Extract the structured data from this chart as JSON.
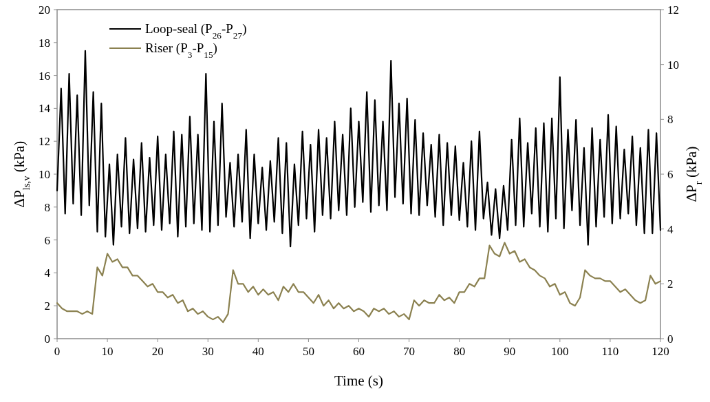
{
  "chart_data": {
    "type": "line",
    "xlabel": "Time (s)",
    "ylabel": "ΔP$_{ls,v}$ (kPa)",
    "y2label": "ΔP$_{r}$ (kPa)",
    "xlim": [
      0,
      120
    ],
    "xticks": [
      0,
      10,
      20,
      30,
      40,
      50,
      60,
      70,
      80,
      90,
      100,
      110,
      120
    ],
    "ylim": [
      0,
      20
    ],
    "yticks": [
      0,
      2,
      4,
      6,
      8,
      10,
      12,
      14,
      16,
      18,
      20
    ],
    "y2lim": [
      0,
      12
    ],
    "y2ticks": [
      0,
      2,
      4,
      6,
      8,
      10,
      12
    ],
    "grid": false,
    "legend": "top left",
    "marker": "none",
    "line_style": "solid",
    "series": [
      {
        "name": "Loop-seal (P$_{26}$-P$_{27}$)",
        "color": "#000000",
        "x": [
          0,
          0.8,
          1.6,
          2.4,
          3.2,
          4,
          4.8,
          5.6,
          6.4,
          7.2,
          8,
          8.8,
          9.6,
          10.4,
          11.2,
          12,
          12.8,
          13.6,
          14.4,
          15.2,
          16,
          16.8,
          17.6,
          18.4,
          19.2,
          20,
          20.8,
          21.6,
          22.4,
          23.2,
          24,
          24.8,
          25.6,
          26.4,
          27.2,
          28,
          28.8,
          29.6,
          30.4,
          31.2,
          32,
          32.8,
          33.6,
          34.4,
          35.2,
          36,
          36.8,
          37.6,
          38.4,
          39.2,
          40,
          40.8,
          41.6,
          42.4,
          43.2,
          44,
          44.8,
          45.6,
          46.4,
          47.2,
          48,
          48.8,
          49.6,
          50.4,
          51.2,
          52,
          52.8,
          53.6,
          54.4,
          55.2,
          56,
          56.8,
          57.6,
          58.4,
          59.2,
          60,
          60.8,
          61.6,
          62.4,
          63.2,
          64,
          64.8,
          65.6,
          66.4,
          67.2,
          68,
          68.8,
          69.6,
          70.4,
          71.2,
          72,
          72.8,
          73.6,
          74.4,
          75.2,
          76,
          76.8,
          77.6,
          78.4,
          79.2,
          80,
          80.8,
          81.6,
          82.4,
          83.2,
          84,
          84.8,
          85.6,
          86.4,
          87.2,
          88,
          88.8,
          89.6,
          90.4,
          91.2,
          92,
          92.8,
          93.6,
          94.4,
          95.2,
          96,
          96.8,
          97.6,
          98.4,
          99.2,
          100,
          100.8,
          101.6,
          102.4,
          103.2,
          104,
          104.8,
          105.6,
          106.4,
          107.2,
          108,
          108.8,
          109.6,
          110.4,
          111.2,
          112,
          112.8,
          113.6,
          114.4,
          115.2,
          116,
          116.8,
          117.6,
          118.4,
          119.2,
          120
        ],
        "values": [
          9,
          15.2,
          7.6,
          16.1,
          8.2,
          14.8,
          7.5,
          17.5,
          8.1,
          15,
          6.5,
          14.3,
          6.2,
          10.6,
          5.7,
          11.2,
          6.8,
          12.2,
          6.4,
          10.9,
          6.7,
          11.9,
          6.5,
          11,
          6.9,
          12.3,
          6.6,
          11.2,
          7,
          12.6,
          6.2,
          12.4,
          6.8,
          13.5,
          7,
          12.4,
          6.6,
          16.1,
          6.5,
          13.2,
          6.9,
          14.3,
          7.4,
          10.7,
          6.8,
          11.2,
          7.1,
          12.7,
          6.1,
          11.2,
          7,
          10.4,
          6.6,
          10.8,
          7.1,
          12.2,
          6.4,
          11.9,
          5.6,
          10.6,
          6.9,
          12.6,
          7.3,
          11.8,
          6.5,
          12.7,
          7.5,
          12.2,
          7.3,
          13.2,
          7.8,
          12.4,
          7.5,
          14,
          8,
          13.2,
          8.3,
          15,
          7.7,
          14.5,
          8.1,
          13.2,
          7.8,
          16.9,
          8.6,
          14.3,
          8.2,
          14.6,
          7.6,
          13.3,
          7.5,
          12.5,
          8.1,
          11.8,
          7.4,
          12.4,
          6.9,
          11.9,
          7.5,
          11.7,
          7.2,
          10.7,
          6.8,
          12,
          6.6,
          12.6,
          7.3,
          9.5,
          6.3,
          9.1,
          6.1,
          9.3,
          6.6,
          12.1,
          6.9,
          13.4,
          6.8,
          11.9,
          7.6,
          12.8,
          6.8,
          13.1,
          6.5,
          13.4,
          7.3,
          15.9,
          6.7,
          12.7,
          7.8,
          13.3,
          6.9,
          11.6,
          5.7,
          12.8,
          6.8,
          12.1,
          7.4,
          13.6,
          7,
          12.9,
          7.3,
          11.5,
          7.6,
          12.3,
          6.9,
          11.6,
          6.4,
          12.7,
          6.4,
          12.5,
          6.6
        ]
      },
      {
        "name": "Riser (P$_{3}$-P$_{15}$)",
        "color": "#8b8150",
        "axis": "y2",
        "x": [
          0,
          1,
          2,
          3,
          4,
          5,
          6,
          7,
          8,
          9,
          10,
          11,
          12,
          13,
          14,
          15,
          16,
          17,
          18,
          19,
          20,
          21,
          22,
          23,
          24,
          25,
          26,
          27,
          28,
          29,
          30,
          31,
          32,
          33,
          34,
          35,
          36,
          37,
          38,
          39,
          40,
          41,
          42,
          43,
          44,
          45,
          46,
          47,
          48,
          49,
          50,
          51,
          52,
          53,
          54,
          55,
          56,
          57,
          58,
          59,
          60,
          61,
          62,
          63,
          64,
          65,
          66,
          67,
          68,
          69,
          70,
          71,
          72,
          73,
          74,
          75,
          76,
          77,
          78,
          79,
          80,
          81,
          82,
          83,
          84,
          85,
          86,
          87,
          88,
          89,
          90,
          91,
          92,
          93,
          94,
          95,
          96,
          97,
          98,
          99,
          100,
          101,
          102,
          103,
          104,
          105,
          106,
          107,
          108,
          109,
          110,
          111,
          112,
          113,
          114,
          115,
          116,
          117,
          118,
          119,
          120
        ],
        "values": [
          1.3,
          1.1,
          1.0,
          1.0,
          1.0,
          0.9,
          1.0,
          0.9,
          2.6,
          2.3,
          3.1,
          2.8,
          2.9,
          2.6,
          2.6,
          2.3,
          2.3,
          2.1,
          1.9,
          2.0,
          1.7,
          1.7,
          1.5,
          1.6,
          1.3,
          1.4,
          1.0,
          1.1,
          0.9,
          1.0,
          0.8,
          0.7,
          0.8,
          0.6,
          0.9,
          2.5,
          2.0,
          2.0,
          1.7,
          1.9,
          1.6,
          1.8,
          1.6,
          1.7,
          1.4,
          1.9,
          1.7,
          2.0,
          1.7,
          1.7,
          1.5,
          1.3,
          1.6,
          1.2,
          1.4,
          1.1,
          1.3,
          1.1,
          1.2,
          1.0,
          1.1,
          1.0,
          0.8,
          1.1,
          1.0,
          1.1,
          0.9,
          1.0,
          0.8,
          0.9,
          0.7,
          1.4,
          1.2,
          1.4,
          1.3,
          1.3,
          1.6,
          1.4,
          1.5,
          1.3,
          1.7,
          1.7,
          2.0,
          1.9,
          2.2,
          2.2,
          3.4,
          3.1,
          3.0,
          3.5,
          3.1,
          3.2,
          2.8,
          2.9,
          2.6,
          2.5,
          2.3,
          2.2,
          1.9,
          2.0,
          1.6,
          1.7,
          1.3,
          1.2,
          1.5,
          2.5,
          2.3,
          2.2,
          2.2,
          2.1,
          2.1,
          1.9,
          1.7,
          1.8,
          1.6,
          1.4,
          1.3,
          1.4,
          2.3,
          2.0,
          2.1
        ]
      }
    ]
  }
}
